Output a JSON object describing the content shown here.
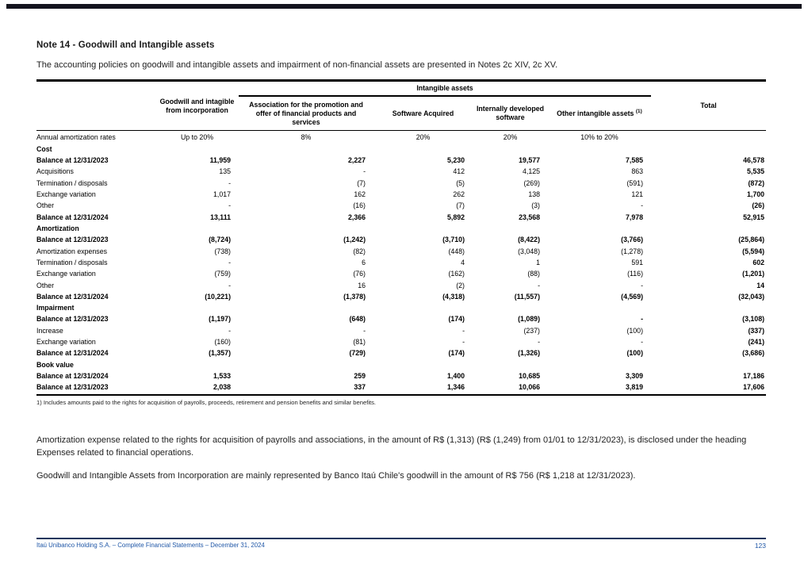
{
  "page": {
    "title": "Note 14 - Goodwill and Intangible assets",
    "intro": "The accounting policies on goodwill and intangible assets and impairment of non-financial assets are presented in Notes 2c XIV, 2c XV.",
    "para1": "Amortization expense related to the rights for acquisition of payrolls and associations, in the amount of R$ (1,313) (R$ (1,249) from 01/01 to 12/31/2023), is disclosed under the heading Expenses related to financial operations.",
    "para2": "Goodwill and Intangible Assets from Incorporation are mainly represented by Banco Itaú Chile's goodwill in the amount of R$ 756 (R$ 1,218 at 12/31/2023)."
  },
  "table": {
    "headers": {
      "group": "Intangible assets",
      "col1": "Goodwill and intagible from incorporation",
      "col2": "Association for the promotion and offer of financial products and services",
      "col3": "Software Acquired",
      "col4": "Internally developed software",
      "col5": "Other intangible assets",
      "col5_ref": "(1)",
      "total": "Total"
    },
    "rows": [
      {
        "label": "Annual amortization rates",
        "type": "rates",
        "values": [
          "Up to 20%",
          "8%",
          "20%",
          "20%",
          "10% to 20%",
          ""
        ]
      },
      {
        "label": "Cost",
        "type": "section"
      },
      {
        "label": "Balance at 12/31/2023",
        "type": "bold",
        "values": [
          "11,959",
          "2,227",
          "5,230",
          "19,577",
          "7,585",
          "46,578"
        ]
      },
      {
        "label": "Acquisitions",
        "type": "regular",
        "values": [
          "135",
          "-",
          "412",
          "4,125",
          "863",
          "5,535"
        ]
      },
      {
        "label": "Termination / disposals",
        "type": "regular",
        "values": [
          "-",
          "(7)",
          "(5)",
          "(269)",
          "(591)",
          "(872)"
        ]
      },
      {
        "label": "Exchange variation",
        "type": "regular",
        "values": [
          "1,017",
          "162",
          "262",
          "138",
          "121",
          "1,700"
        ]
      },
      {
        "label": "Other",
        "type": "regular",
        "values": [
          "-",
          "(16)",
          "(7)",
          "(3)",
          "-",
          "(26)"
        ]
      },
      {
        "label": "Balance at 12/31/2024",
        "type": "bold",
        "values": [
          "13,111",
          "2,366",
          "5,892",
          "23,568",
          "7,978",
          "52,915"
        ]
      },
      {
        "label": "Amortization",
        "type": "section"
      },
      {
        "label": "Balance at 12/31/2023",
        "type": "bold",
        "values": [
          "(8,724)",
          "(1,242)",
          "(3,710)",
          "(8,422)",
          "(3,766)",
          "(25,864)"
        ]
      },
      {
        "label": "Amortization expenses",
        "type": "regular",
        "values": [
          "(738)",
          "(82)",
          "(448)",
          "(3,048)",
          "(1,278)",
          "(5,594)"
        ]
      },
      {
        "label": "Termination / disposals",
        "type": "regular",
        "values": [
          "-",
          "6",
          "4",
          "1",
          "591",
          "602"
        ]
      },
      {
        "label": "Exchange variation",
        "type": "regular",
        "values": [
          "(759)",
          "(76)",
          "(162)",
          "(88)",
          "(116)",
          "(1,201)"
        ]
      },
      {
        "label": "Other",
        "type": "regular",
        "values": [
          "-",
          "16",
          "(2)",
          "-",
          "-",
          "14"
        ]
      },
      {
        "label": "Balance at 12/31/2024",
        "type": "bold",
        "values": [
          "(10,221)",
          "(1,378)",
          "(4,318)",
          "(11,557)",
          "(4,569)",
          "(32,043)"
        ]
      },
      {
        "label": "Impairment",
        "type": "section"
      },
      {
        "label": "Balance at 12/31/2023",
        "type": "bold",
        "values": [
          "(1,197)",
          "(648)",
          "(174)",
          "(1,089)",
          "-",
          "(3,108)"
        ]
      },
      {
        "label": "Increase",
        "type": "regular",
        "values": [
          "-",
          "-",
          "-",
          "(237)",
          "(100)",
          "(337)"
        ]
      },
      {
        "label": "Exchange variation",
        "type": "regular",
        "values": [
          "(160)",
          "(81)",
          "-",
          "-",
          "-",
          "(241)"
        ]
      },
      {
        "label": "Balance at 12/31/2024",
        "type": "bold",
        "values": [
          "(1,357)",
          "(729)",
          "(174)",
          "(1,326)",
          "(100)",
          "(3,686)"
        ]
      },
      {
        "label": "Book value",
        "type": "section"
      },
      {
        "label": "Balance at 12/31/2024",
        "type": "bold",
        "values": [
          "1,533",
          "259",
          "1,400",
          "10,685",
          "3,309",
          "17,186"
        ]
      },
      {
        "label": "Balance at 12/31/2023",
        "type": "bold",
        "values": [
          "2,038",
          "337",
          "1,346",
          "10,066",
          "3,819",
          "17,606"
        ]
      }
    ],
    "footnote": "1) Includes amounts paid to the rights for acquisition of payrolls, proceeds, retirement and pension benefits and similar benefits."
  },
  "footer": {
    "left": "Itaú Unibanco Holding S.A. – Complete Financial Statements – December 31, 2024",
    "page": "123"
  },
  "colors": {
    "footer_blue": "#2057a7",
    "footer_rule": "#17365d",
    "text": "#1a1a1a"
  }
}
